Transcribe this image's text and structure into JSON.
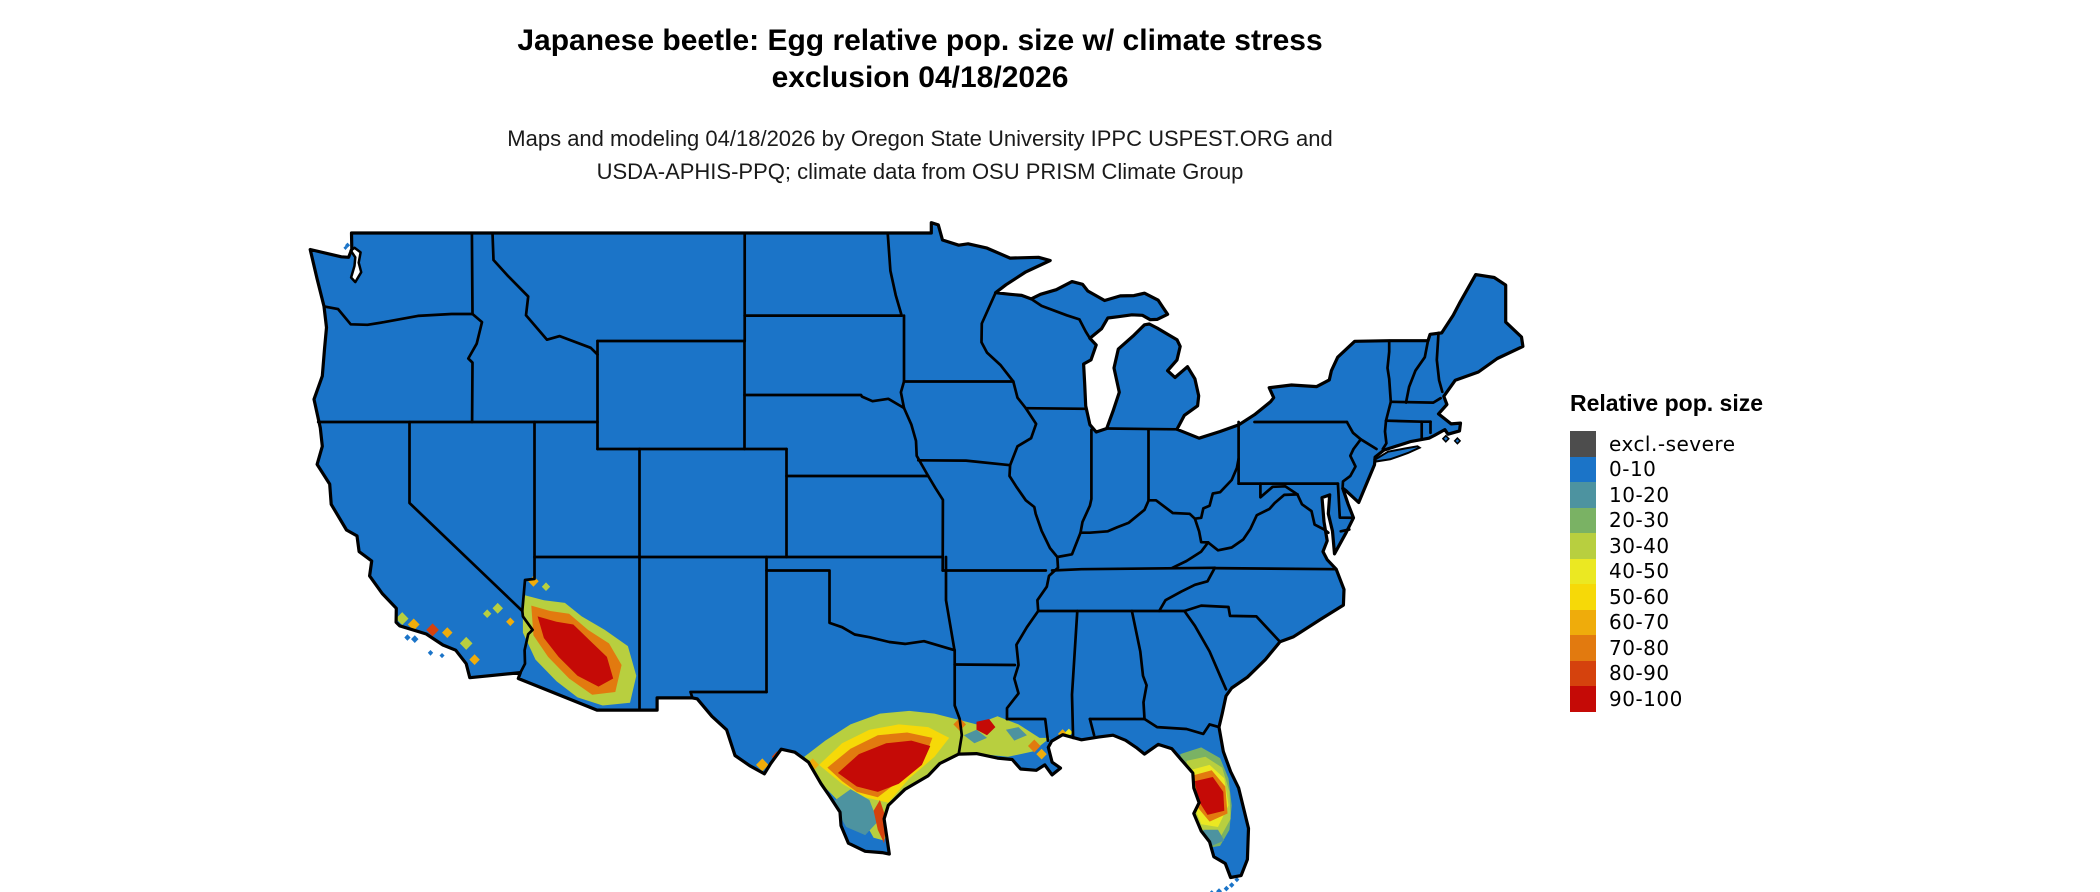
{
  "title": {
    "line1": "Japanese beetle: Egg relative pop. size w/ climate stress",
    "line2": "exclusion 04/18/2026"
  },
  "subtitle": {
    "line1": "Maps and modeling 04/18/2026 by Oregon State University IPPC USPEST.ORG and",
    "line2": "USDA-APHIS-PPQ; climate data from OSU PRISM Climate Group"
  },
  "legend": {
    "title": "Relative pop. size",
    "items": [
      {
        "label": "excl.-severe",
        "color": "#4d4d4d"
      },
      {
        "label": "0-10",
        "color": "#1b74c8"
      },
      {
        "label": "10-20",
        "color": "#4d93a0"
      },
      {
        "label": "20-30",
        "color": "#7ab264"
      },
      {
        "label": "30-40",
        "color": "#b8cf3f"
      },
      {
        "label": "40-50",
        "color": "#ebe822"
      },
      {
        "label": "50-60",
        "color": "#f6d908"
      },
      {
        "label": "60-70",
        "color": "#efac0b"
      },
      {
        "label": "70-80",
        "color": "#e27a0f"
      },
      {
        "label": "80-90",
        "color": "#d5420d"
      },
      {
        "label": "90-100",
        "color": "#c50a06"
      }
    ]
  },
  "map": {
    "land_color_key": "0-10",
    "border_color": "#000000",
    "water_color": "#ffffff",
    "hotspot_regions": [
      "southern Arizona and southeastern California",
      "southern Texas, Gulf Coast and Louisiana",
      "central Florida"
    ]
  }
}
